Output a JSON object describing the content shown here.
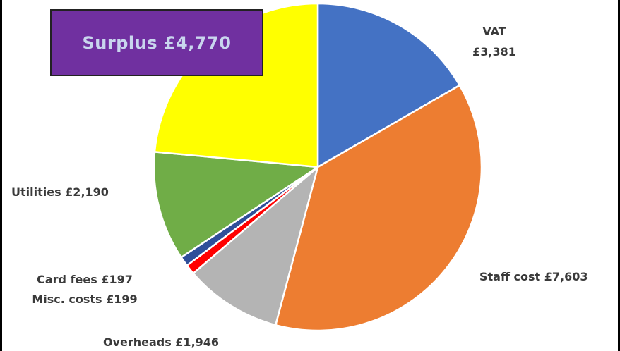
{
  "chart_data": {
    "type": "pie",
    "title": "",
    "start_angle_deg": 0,
    "direction": "clockwise",
    "slices": [
      {
        "name": "VAT",
        "value": 3381,
        "display": "VAT",
        "value_label": "£3,381",
        "color": "#4472c4"
      },
      {
        "name": "Staff cost",
        "value": 7603,
        "display": "Staff cost £7,603",
        "color": "#ed7d31"
      },
      {
        "name": "Overheads",
        "value": 1946,
        "display": "Overheads £1,946",
        "color": "#b4b4b4"
      },
      {
        "name": "Misc. costs",
        "value": 199,
        "display": "Misc. costs £199",
        "color": "#ff0000"
      },
      {
        "name": "Card fees",
        "value": 197,
        "display": "Card fees £197",
        "color": "#2f4f9a"
      },
      {
        "name": "Utilities",
        "value": 2190,
        "display": "Utilities £2,190",
        "color": "#70ad47"
      },
      {
        "name": "Surplus",
        "value": 4770,
        "display": "Surplus £4,770",
        "color": "#ffff00"
      }
    ],
    "surplus_box": {
      "text": "Surplus £4,770",
      "background": "#7030a0",
      "text_color": "#c9d6ee"
    }
  }
}
